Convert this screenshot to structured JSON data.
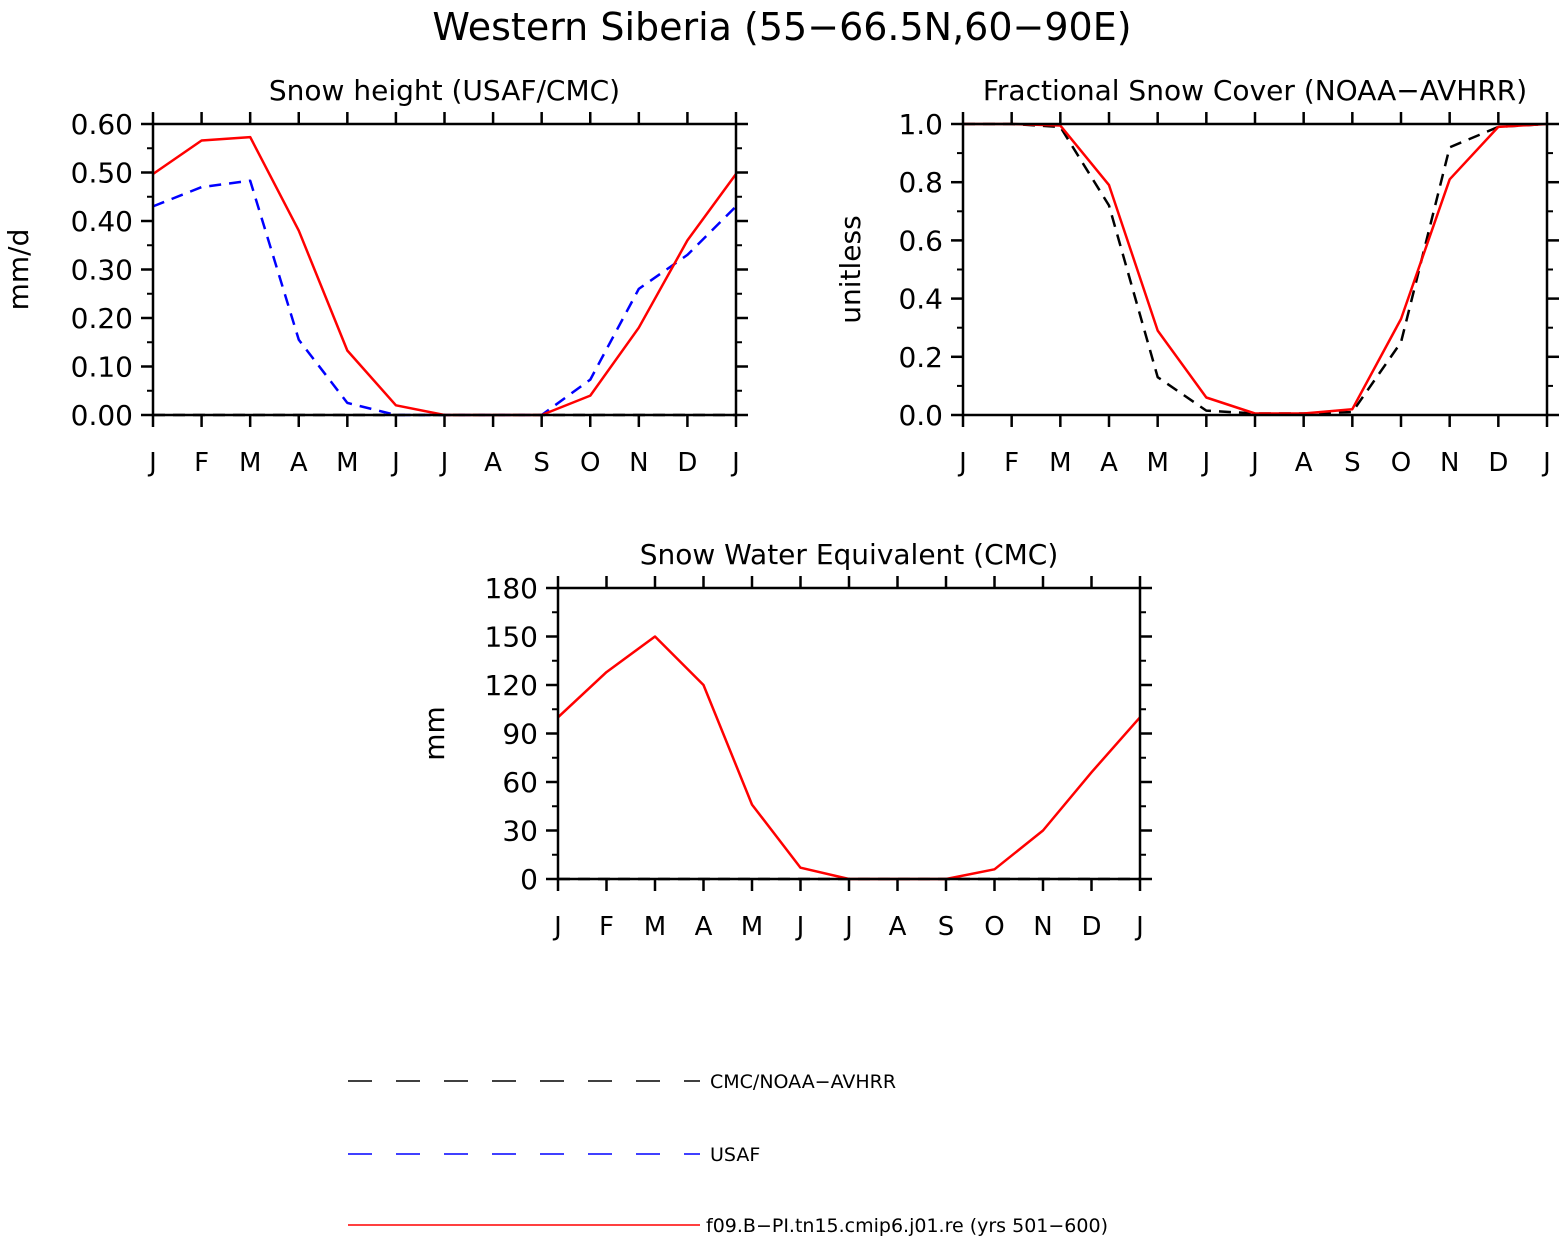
{
  "figure": {
    "title": "Western Siberia (55−66.5N,60−90E)"
  },
  "legend": {
    "items": [
      {
        "label": "CMC/NOAA−AVHRR",
        "color": "#000000",
        "dash": "dashed"
      },
      {
        "label": "USAF",
        "color": "#0000ff",
        "dash": "dashed"
      },
      {
        "label": "f09.B−PI.tn15.cmip6.j01.re (yrs 501−600)",
        "color": "#ff0000",
        "dash": "solid"
      }
    ]
  },
  "chart_data": [
    {
      "type": "line",
      "title": "Snow height (USAF/CMC)",
      "xlabel": "",
      "ylabel": "mm/d",
      "categories": [
        "J",
        "F",
        "M",
        "A",
        "M",
        "J",
        "J",
        "A",
        "S",
        "O",
        "N",
        "D",
        "J"
      ],
      "ylim": [
        0,
        0.6
      ],
      "yticks": [
        "0.00",
        "0.10",
        "0.20",
        "0.30",
        "0.40",
        "0.50",
        "0.60"
      ],
      "grid": false,
      "series": [
        {
          "name": "CMC/NOAA−AVHRR",
          "color": "#000000",
          "dash": "dashed",
          "values": [
            0,
            0,
            0,
            0,
            0,
            0,
            0,
            0,
            0,
            0,
            0,
            0,
            0
          ]
        },
        {
          "name": "USAF",
          "color": "#0000ff",
          "dash": "dashed",
          "values": [
            0.43,
            0.47,
            0.483,
            0.155,
            0.025,
            0,
            0,
            0,
            0,
            0.073,
            0.26,
            0.33,
            0.43
          ]
        },
        {
          "name": "f09.B−PI.tn15.cmip6.j01.re (yrs 501−600)",
          "color": "#ff0000",
          "dash": "solid",
          "values": [
            0.497,
            0.566,
            0.573,
            0.38,
            0.133,
            0.02,
            0,
            0,
            0,
            0.04,
            0.18,
            0.36,
            0.497
          ]
        }
      ]
    },
    {
      "type": "line",
      "title": "Fractional Snow Cover (NOAA−AVHRR)",
      "xlabel": "",
      "ylabel": "unitless",
      "categories": [
        "J",
        "F",
        "M",
        "A",
        "M",
        "J",
        "J",
        "A",
        "S",
        "O",
        "N",
        "D",
        "J"
      ],
      "ylim": [
        0,
        1.0
      ],
      "yticks": [
        "0.0",
        "0.2",
        "0.4",
        "0.6",
        "0.8",
        "1.0"
      ],
      "grid": false,
      "series": [
        {
          "name": "CMC/NOAA−AVHRR",
          "color": "#000000",
          "dash": "dashed",
          "values": [
            1.0,
            1.0,
            0.99,
            0.72,
            0.13,
            0.015,
            0.005,
            0.005,
            0.01,
            0.25,
            0.92,
            0.99,
            1.0
          ]
        },
        {
          "name": "f09.B−PI.tn15.cmip6.j01.re (yrs 501−600)",
          "color": "#ff0000",
          "dash": "solid",
          "values": [
            1.0,
            1.0,
            0.995,
            0.79,
            0.29,
            0.06,
            0.005,
            0.005,
            0.02,
            0.33,
            0.81,
            0.99,
            1.0
          ]
        }
      ]
    },
    {
      "type": "line",
      "title": "Snow Water Equivalent (CMC)",
      "xlabel": "",
      "ylabel": "mm",
      "categories": [
        "J",
        "F",
        "M",
        "A",
        "M",
        "J",
        "J",
        "A",
        "S",
        "O",
        "N",
        "D",
        "J"
      ],
      "ylim": [
        0,
        180
      ],
      "yticks": [
        "0",
        "30",
        "60",
        "90",
        "120",
        "150",
        "180"
      ],
      "grid": false,
      "series": [
        {
          "name": "CMC/NOAA−AVHRR",
          "color": "#000000",
          "dash": "dashed",
          "values": [
            0,
            0,
            0,
            0,
            0,
            0,
            0,
            0,
            0,
            0,
            0,
            0,
            0
          ]
        },
        {
          "name": "f09.B−PI.tn15.cmip6.j01.re (yrs 501−600)",
          "color": "#ff0000",
          "dash": "solid",
          "values": [
            100,
            128,
            150,
            120,
            46,
            7,
            0,
            0,
            0,
            6,
            30,
            66,
            100
          ]
        }
      ]
    }
  ]
}
